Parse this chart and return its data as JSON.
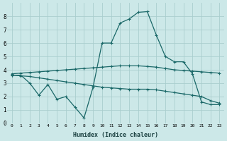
{
  "xlabel": "Humidex (Indice chaleur)",
  "bg_color": "#cce8e8",
  "grid_color": "#aacece",
  "line_color": "#1a6868",
  "x": [
    0,
    1,
    2,
    3,
    4,
    5,
    6,
    7,
    8,
    9,
    10,
    11,
    12,
    13,
    14,
    15,
    16,
    17,
    18,
    19,
    20,
    21,
    22,
    23
  ],
  "line1": [
    3.6,
    3.6,
    3.0,
    2.1,
    2.9,
    1.8,
    2.0,
    1.2,
    0.4,
    2.7,
    6.0,
    6.0,
    7.5,
    7.8,
    8.3,
    8.35,
    6.6,
    5.0,
    4.6,
    4.6,
    3.7,
    1.6,
    1.4,
    1.4
  ],
  "line2": [
    3.7,
    3.75,
    3.8,
    3.85,
    3.9,
    3.95,
    4.0,
    4.05,
    4.1,
    4.15,
    4.2,
    4.25,
    4.3,
    4.3,
    4.3,
    4.25,
    4.2,
    4.1,
    4.0,
    3.95,
    3.9,
    3.85,
    3.8,
    3.75
  ],
  "line3": [
    3.6,
    3.55,
    3.5,
    3.4,
    3.3,
    3.2,
    3.1,
    3.0,
    2.9,
    2.8,
    2.7,
    2.65,
    2.6,
    2.55,
    2.55,
    2.55,
    2.5,
    2.4,
    2.3,
    2.2,
    2.1,
    2.0,
    1.7,
    1.5
  ],
  "ylim": [
    0,
    9
  ],
  "xlim": [
    -0.5,
    23.5
  ],
  "yticks": [
    0,
    1,
    2,
    3,
    4,
    5,
    6,
    7,
    8
  ],
  "xticks": [
    0,
    1,
    2,
    3,
    4,
    5,
    6,
    7,
    8,
    9,
    10,
    11,
    12,
    13,
    14,
    15,
    16,
    17,
    18,
    19,
    20,
    21,
    22,
    23
  ],
  "figsize": [
    3.2,
    2.0
  ],
  "dpi": 100
}
